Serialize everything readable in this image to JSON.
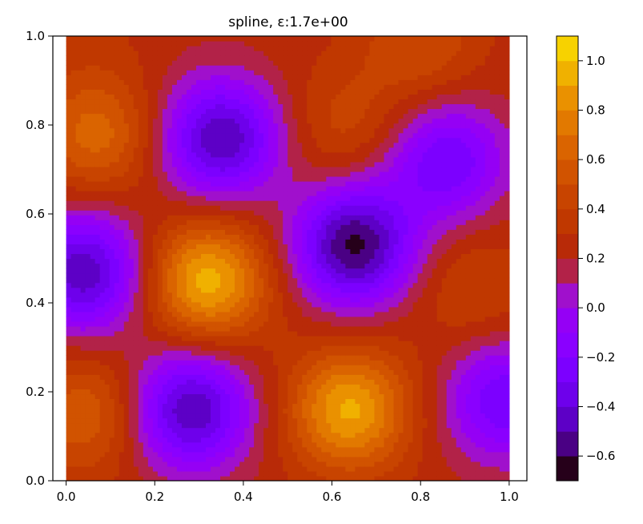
{
  "chart_data": {
    "type": "contourf",
    "title": "spline, ε:1.7e+00",
    "xlabel": "",
    "ylabel": "",
    "xlim": [
      -0.03,
      1.04
    ],
    "ylim": [
      0.0,
      1.0
    ],
    "data_x_range": [
      0.0,
      1.0
    ],
    "x_ticks": [
      0.0,
      0.2,
      0.4,
      0.6,
      0.8,
      1.0
    ],
    "x_tick_labels": [
      "0.0",
      "0.2",
      "0.4",
      "0.6",
      "0.8",
      "1.0"
    ],
    "y_ticks": [
      0.0,
      0.2,
      0.4,
      0.6,
      0.8,
      1.0
    ],
    "y_tick_labels": [
      "0.0",
      "0.2",
      "0.4",
      "0.6",
      "0.8",
      "1.0"
    ],
    "grid": false,
    "colormap": "gnuplot",
    "colorbar": {
      "vmin": -0.7,
      "vmax": 1.1,
      "levels": [
        -0.7,
        -0.6,
        -0.5,
        -0.4,
        -0.3,
        -0.2,
        -0.1,
        0.0,
        0.1,
        0.2,
        0.3,
        0.4,
        0.5,
        0.6,
        0.7,
        0.8,
        0.9,
        1.0,
        1.1
      ],
      "tick_values": [
        -0.6,
        -0.4,
        -0.2,
        0.0,
        0.2,
        0.4,
        0.6,
        0.8,
        1.0
      ],
      "tick_labels": [
        "−0.6",
        "−0.4",
        "−0.2",
        "0.0",
        "0.2",
        "0.4",
        "0.6",
        "0.8",
        "1.0"
      ],
      "colors": [
        "#26001a",
        "#4a0084",
        "#5d00c6",
        "#6e00eb",
        "#7c00ff",
        "#8a00ff",
        "#9500f5",
        "#a010cc",
        "#b22248",
        "#b82a08",
        "#c03800",
        "#c84400",
        "#d15300",
        "#da6400",
        "#e27900",
        "#ea9100",
        "#f0b100",
        "#f7d200",
        "#fff200"
      ]
    },
    "extrema": [
      {
        "x": 0.32,
        "y": 0.45,
        "value": 0.95
      },
      {
        "x": 0.64,
        "y": 0.16,
        "value": 0.92
      },
      {
        "x": 0.07,
        "y": 0.78,
        "value": 0.65
      },
      {
        "x": 0.05,
        "y": 0.15,
        "value": 0.6
      },
      {
        "x": 0.92,
        "y": 0.43,
        "value": 0.42
      },
      {
        "x": 0.63,
        "y": 0.8,
        "value": 0.45
      },
      {
        "x": 0.8,
        "y": 0.98,
        "value": 0.5
      },
      {
        "x": 0.04,
        "y": 0.99,
        "value": 0.3
      },
      {
        "x": 0.65,
        "y": 0.53,
        "value": -0.62
      },
      {
        "x": 0.35,
        "y": 0.77,
        "value": -0.5
      },
      {
        "x": 0.28,
        "y": 0.16,
        "value": -0.5
      },
      {
        "x": 0.04,
        "y": 0.47,
        "value": -0.48
      },
      {
        "x": 0.86,
        "y": 0.72,
        "value": -0.3
      },
      {
        "x": 0.99,
        "y": 0.18,
        "value": -0.3
      }
    ],
    "baseline": 0.25
  }
}
